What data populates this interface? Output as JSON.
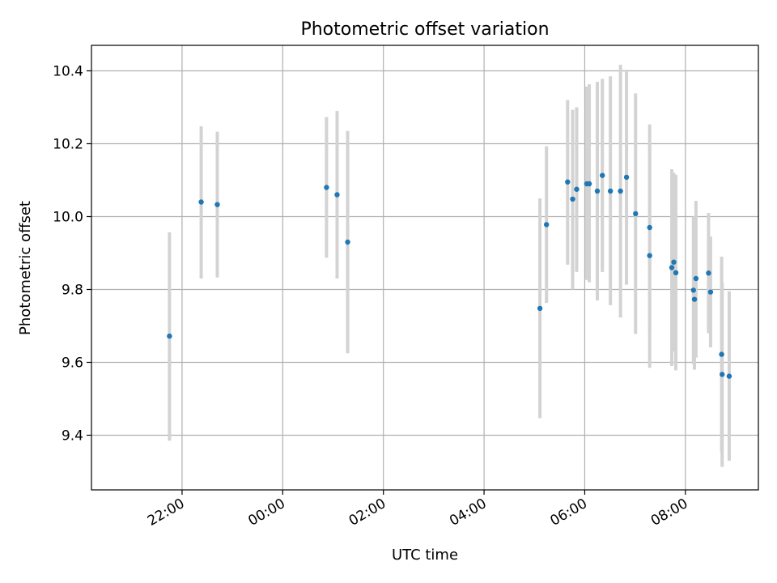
{
  "chart_data": {
    "type": "scatter",
    "title": "Photometric offset variation",
    "xlabel": "UTC time",
    "ylabel": "Photometric offset",
    "x_unit": "hours since 00:00 UTC (negative = previous day)",
    "xlim": [
      -3.8,
      9.45
    ],
    "ylim": [
      9.25,
      10.47
    ],
    "grid": true,
    "x_ticks": [
      {
        "value": -2,
        "label": "22:00"
      },
      {
        "value": 0,
        "label": "00:00"
      },
      {
        "value": 2,
        "label": "02:00"
      },
      {
        "value": 4,
        "label": "04:00"
      },
      {
        "value": 6,
        "label": "06:00"
      },
      {
        "value": 8,
        "label": "08:00"
      }
    ],
    "y_ticks": [
      {
        "value": 9.4,
        "label": "9.4"
      },
      {
        "value": 9.6,
        "label": "9.6"
      },
      {
        "value": 9.8,
        "label": "9.8"
      },
      {
        "value": 10.0,
        "label": "10.0"
      },
      {
        "value": 10.2,
        "label": "10.2"
      },
      {
        "value": 10.4,
        "label": "10.4"
      }
    ],
    "series": [
      {
        "name": "offset",
        "marker_color": "#1f77b4",
        "errorbar_color": "#d3d3d3",
        "points": [
          {
            "x": -2.25,
            "y": 9.672,
            "ylo": 9.385,
            "yhi": 9.957
          },
          {
            "x": -1.62,
            "y": 10.04,
            "ylo": 9.83,
            "yhi": 10.248
          },
          {
            "x": -1.3,
            "y": 10.033,
            "ylo": 9.833,
            "yhi": 10.233
          },
          {
            "x": 0.87,
            "y": 10.08,
            "ylo": 9.887,
            "yhi": 10.273
          },
          {
            "x": 1.08,
            "y": 10.06,
            "ylo": 9.83,
            "yhi": 10.29
          },
          {
            "x": 1.29,
            "y": 9.93,
            "ylo": 9.625,
            "yhi": 10.235
          },
          {
            "x": 5.11,
            "y": 9.748,
            "ylo": 9.447,
            "yhi": 10.05
          },
          {
            "x": 5.24,
            "y": 9.978,
            "ylo": 9.763,
            "yhi": 10.193
          },
          {
            "x": 5.66,
            "y": 10.095,
            "ylo": 9.868,
            "yhi": 10.32
          },
          {
            "x": 5.76,
            "y": 10.048,
            "ylo": 9.8,
            "yhi": 10.293
          },
          {
            "x": 5.84,
            "y": 10.075,
            "ylo": 9.848,
            "yhi": 10.3
          },
          {
            "x": 6.04,
            "y": 10.09,
            "ylo": 9.826,
            "yhi": 10.357
          },
          {
            "x": 6.09,
            "y": 10.09,
            "ylo": 9.82,
            "yhi": 10.363
          },
          {
            "x": 6.25,
            "y": 10.07,
            "ylo": 9.77,
            "yhi": 10.37
          },
          {
            "x": 6.35,
            "y": 10.113,
            "ylo": 9.848,
            "yhi": 10.378
          },
          {
            "x": 6.51,
            "y": 10.07,
            "ylo": 9.757,
            "yhi": 10.385
          },
          {
            "x": 6.71,
            "y": 10.07,
            "ylo": 9.723,
            "yhi": 10.417
          },
          {
            "x": 6.83,
            "y": 10.108,
            "ylo": 9.813,
            "yhi": 10.403
          },
          {
            "x": 7.01,
            "y": 10.008,
            "ylo": 9.678,
            "yhi": 10.338
          },
          {
            "x": 7.29,
            "y": 9.97,
            "ylo": 9.687,
            "yhi": 10.253
          },
          {
            "x": 7.29,
            "y": 9.893,
            "ylo": 9.585,
            "yhi": 10.2
          },
          {
            "x": 7.73,
            "y": 9.86,
            "ylo": 9.59,
            "yhi": 10.13
          },
          {
            "x": 7.77,
            "y": 9.875,
            "ylo": 9.63,
            "yhi": 10.12
          },
          {
            "x": 7.81,
            "y": 9.846,
            "ylo": 9.578,
            "yhi": 10.115
          },
          {
            "x": 8.16,
            "y": 9.798,
            "ylo": 9.595,
            "yhi": 10.0
          },
          {
            "x": 8.18,
            "y": 9.773,
            "ylo": 9.58,
            "yhi": 9.966
          },
          {
            "x": 8.21,
            "y": 9.83,
            "ylo": 9.613,
            "yhi": 10.043
          },
          {
            "x": 8.46,
            "y": 9.845,
            "ylo": 9.68,
            "yhi": 10.01
          },
          {
            "x": 8.5,
            "y": 9.793,
            "ylo": 9.641,
            "yhi": 9.945
          },
          {
            "x": 8.72,
            "y": 9.622,
            "ylo": 9.353,
            "yhi": 9.89
          },
          {
            "x": 8.73,
            "y": 9.567,
            "ylo": 9.313,
            "yhi": 9.82
          },
          {
            "x": 8.87,
            "y": 9.562,
            "ylo": 9.33,
            "yhi": 9.795
          }
        ]
      }
    ]
  }
}
